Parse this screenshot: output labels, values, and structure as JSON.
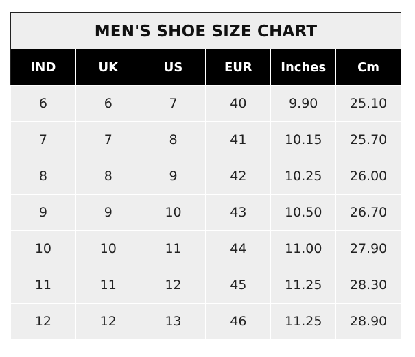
{
  "chart_data": {
    "type": "table",
    "title": "MEN'S SHOE SIZE CHART",
    "columns": [
      "IND",
      "UK",
      "US",
      "EUR",
      "Inches",
      "Cm"
    ],
    "rows": [
      [
        "6",
        "6",
        "7",
        "40",
        "9.90",
        "25.10"
      ],
      [
        "7",
        "7",
        "8",
        "41",
        "10.15",
        "25.70"
      ],
      [
        "8",
        "8",
        "9",
        "42",
        "10.25",
        "26.00"
      ],
      [
        "9",
        "9",
        "10",
        "43",
        "10.50",
        "26.70"
      ],
      [
        "10",
        "10",
        "11",
        "44",
        "11.00",
        "27.90"
      ],
      [
        "11",
        "11",
        "12",
        "45",
        "11.25",
        "28.30"
      ],
      [
        "12",
        "12",
        "13",
        "46",
        "11.25",
        "28.90"
      ]
    ],
    "colors": {
      "header_bg": "#000000",
      "header_text": "#ffffff",
      "cell_bg": "#eeeeee"
    }
  }
}
